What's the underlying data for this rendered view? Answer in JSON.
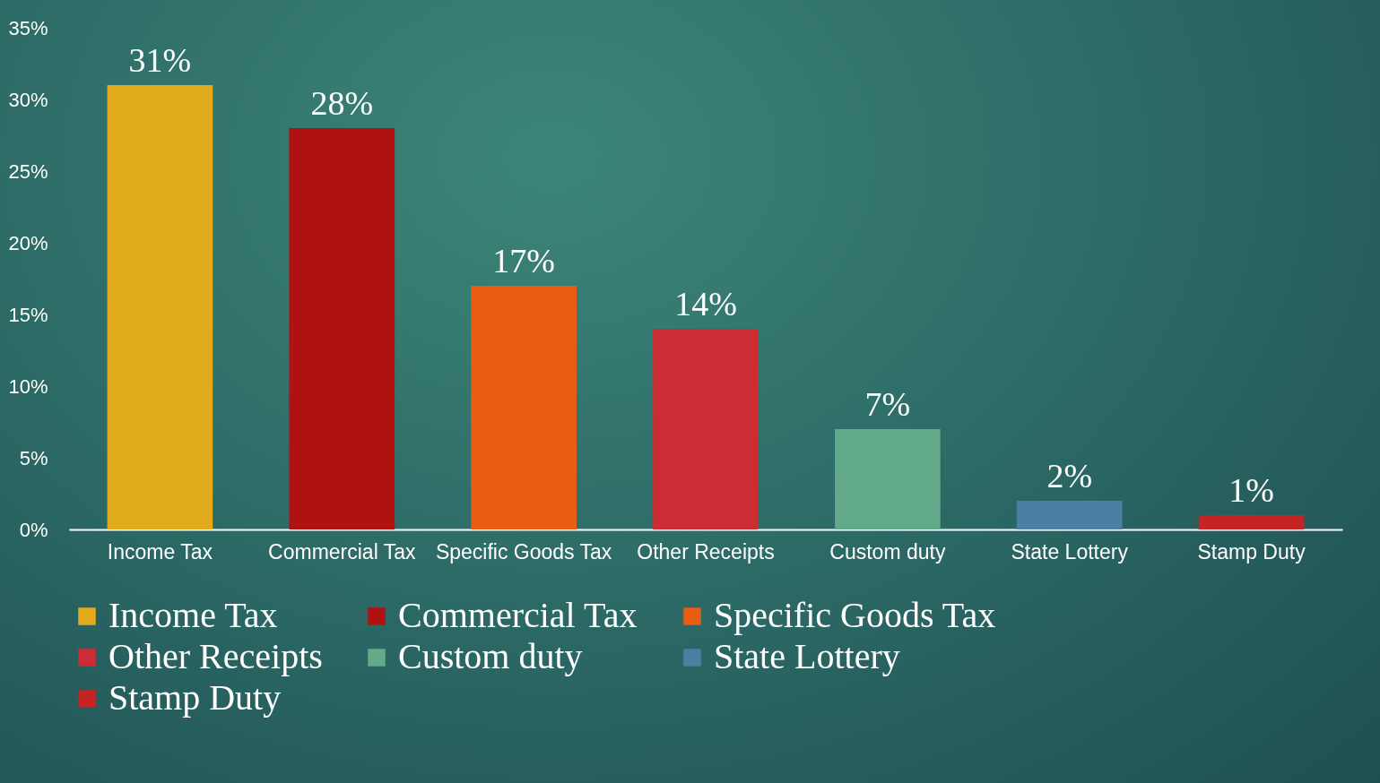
{
  "chart_data": {
    "type": "bar",
    "categories": [
      "Income Tax",
      "Commercial Tax",
      "Specific Goods Tax",
      "Other Receipts",
      "Custom duty",
      "State Lottery",
      "Stamp Duty"
    ],
    "series": [
      {
        "name": "Income Tax",
        "color": "#e0aa1c",
        "values": [
          31,
          null,
          null,
          null,
          null,
          null,
          null
        ],
        "value_labels": [
          "31%",
          null,
          null,
          null,
          null,
          null,
          null
        ]
      },
      {
        "name": "Commercial Tax",
        "color": "#b01212",
        "values": [
          null,
          28,
          null,
          null,
          null,
          null,
          null
        ],
        "value_labels": [
          null,
          "28%",
          null,
          null,
          null,
          null,
          null
        ]
      },
      {
        "name": "Specific Goods Tax",
        "color": "#e85c14",
        "values": [
          null,
          null,
          17,
          null,
          null,
          null,
          null
        ],
        "value_labels": [
          null,
          null,
          "17%",
          null,
          null,
          null,
          null
        ]
      },
      {
        "name": "Other Receipts",
        "color": "#cc2c34",
        "values": [
          null,
          null,
          null,
          14,
          null,
          null,
          null
        ],
        "value_labels": [
          null,
          null,
          null,
          "14%",
          null,
          null,
          null
        ]
      },
      {
        "name": "Custom duty",
        "color": "#62aa8a",
        "values": [
          null,
          null,
          null,
          null,
          7,
          null,
          null
        ],
        "value_labels": [
          null,
          null,
          null,
          null,
          "7%",
          null,
          null
        ]
      },
      {
        "name": "State Lottery",
        "color": "#4a80a2",
        "values": [
          null,
          null,
          null,
          null,
          null,
          2,
          null
        ],
        "value_labels": [
          null,
          null,
          null,
          null,
          null,
          "2%",
          null
        ]
      },
      {
        "name": "Stamp Duty",
        "color": "#c42424",
        "values": [
          null,
          null,
          null,
          null,
          null,
          null,
          1
        ],
        "value_labels": [
          null,
          null,
          null,
          null,
          null,
          null,
          "1%"
        ]
      }
    ],
    "ylim": [
      0,
      35
    ],
    "yticks": [
      {
        "value": 0,
        "label": "0%"
      },
      {
        "value": 5,
        "label": "5%"
      },
      {
        "value": 10,
        "label": "10%"
      },
      {
        "value": 15,
        "label": "15%"
      },
      {
        "value": 20,
        "label": "20%"
      },
      {
        "value": 25,
        "label": "25%"
      },
      {
        "value": 30,
        "label": "30%"
      },
      {
        "value": 35,
        "label": "35%"
      }
    ],
    "grid": false,
    "legend": "bottom"
  }
}
